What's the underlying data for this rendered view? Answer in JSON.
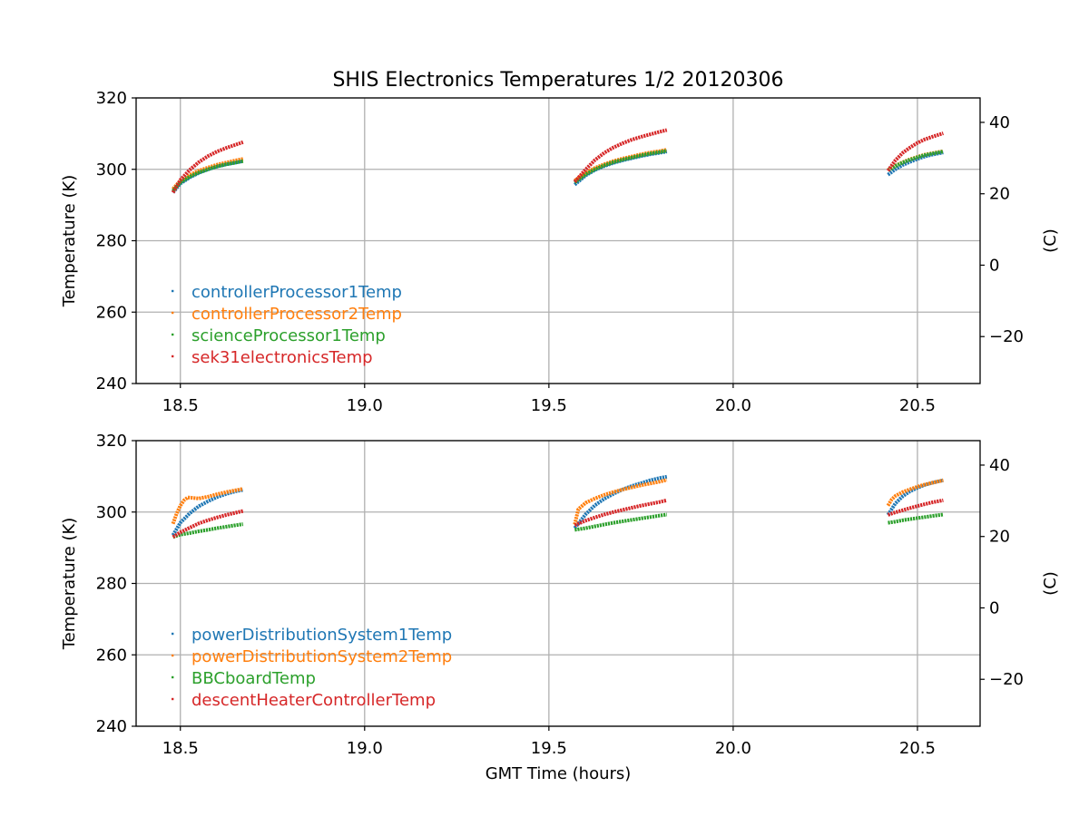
{
  "figure_title": "SHIS Electronics Temperatures 1/2 20120306",
  "chart_data": [
    {
      "type": "scatter",
      "title": "SHIS Electronics Temperatures 1/2 20120306",
      "xlabel": "",
      "ylabel": "Temperature (K)",
      "ylabel_right": "(C)",
      "xlim": [
        18.38,
        20.67
      ],
      "ylim": [
        240,
        320
      ],
      "xticks": [
        "18.5",
        "19.0",
        "19.5",
        "20.0",
        "20.5"
      ],
      "yticks": [
        "240",
        "260",
        "280",
        "300",
        "320"
      ],
      "right_yticks": [
        "−20",
        "0",
        "20",
        "40"
      ],
      "grid": true,
      "legend_position": "lower-left",
      "series": [
        {
          "name": "controllerProcessor1Temp",
          "color": "#1f77b4",
          "segments": [
            {
              "x": [
                18.48,
                18.5,
                18.525,
                18.55,
                18.575,
                18.6,
                18.625,
                18.65,
                18.67
              ],
              "y": [
                293.5,
                296.0,
                297.7,
                299.0,
                300.0,
                300.8,
                301.4,
                301.9,
                302.3
              ]
            },
            {
              "x": [
                19.57,
                19.6,
                19.625,
                19.65,
                19.675,
                19.7,
                19.725,
                19.75,
                19.775,
                19.8,
                19.82
              ],
              "y": [
                295.7,
                298.3,
                299.8,
                300.9,
                301.8,
                302.5,
                303.1,
                303.7,
                304.2,
                304.6,
                305.0
              ]
            },
            {
              "x": [
                20.42,
                20.44,
                20.46,
                20.48,
                20.5,
                20.52,
                20.54,
                20.57
              ],
              "y": [
                298.5,
                300.0,
                301.2,
                302.1,
                302.9,
                303.6,
                304.1,
                304.7
              ]
            }
          ]
        },
        {
          "name": "controllerProcessor2Temp",
          "color": "#ff7f0e",
          "segments": [
            {
              "x": [
                18.48,
                18.5,
                18.525,
                18.55,
                18.575,
                18.6,
                18.625,
                18.65,
                18.67
              ],
              "y": [
                294.5,
                296.8,
                298.4,
                299.6,
                300.5,
                301.3,
                301.9,
                302.5,
                302.9
              ]
            },
            {
              "x": [
                19.57,
                19.6,
                19.625,
                19.65,
                19.675,
                19.7,
                19.725,
                19.75,
                19.775,
                19.8,
                19.82
              ],
              "y": [
                296.8,
                299.0,
                300.4,
                301.4,
                302.3,
                303.0,
                303.6,
                304.2,
                304.7,
                305.1,
                305.5
              ]
            },
            {
              "x": [
                20.42,
                20.44,
                20.46,
                20.48,
                20.5,
                20.52,
                20.54,
                20.57
              ],
              "y": [
                299.8,
                301.0,
                302.0,
                302.8,
                303.5,
                304.1,
                304.5,
                305.1
              ]
            }
          ]
        },
        {
          "name": "scienceProcessor1Temp",
          "color": "#2ca02c",
          "segments": [
            {
              "x": [
                18.48,
                18.5,
                18.525,
                18.55,
                18.575,
                18.6,
                18.625,
                18.65,
                18.67
              ],
              "y": [
                294.0,
                296.3,
                297.9,
                299.1,
                300.0,
                300.8,
                301.4,
                301.9,
                302.3
              ]
            },
            {
              "x": [
                19.57,
                19.6,
                19.625,
                19.65,
                19.675,
                19.7,
                19.725,
                19.75,
                19.775,
                19.8,
                19.82
              ],
              "y": [
                296.3,
                298.6,
                300.0,
                301.1,
                302.0,
                302.7,
                303.3,
                303.9,
                304.4,
                304.8,
                305.2
              ]
            },
            {
              "x": [
                20.42,
                20.44,
                20.46,
                20.48,
                20.5,
                20.52,
                20.54,
                20.57
              ],
              "y": [
                299.7,
                300.9,
                301.9,
                302.7,
                303.4,
                304.0,
                304.4,
                305.0
              ]
            }
          ]
        },
        {
          "name": "sek31electronicsTemp",
          "color": "#d62728",
          "segments": [
            {
              "x": [
                18.48,
                18.5,
                18.525,
                18.55,
                18.575,
                18.6,
                18.625,
                18.65,
                18.67
              ],
              "y": [
                293.5,
                297.0,
                299.8,
                302.0,
                303.7,
                305.0,
                306.0,
                306.9,
                307.6
              ]
            },
            {
              "x": [
                19.57,
                19.6,
                19.625,
                19.65,
                19.675,
                19.7,
                19.725,
                19.75,
                19.775,
                19.8,
                19.82
              ],
              "y": [
                296.5,
                300.0,
                302.6,
                304.6,
                306.1,
                307.3,
                308.3,
                309.1,
                309.8,
                310.5,
                311.0
              ]
            },
            {
              "x": [
                20.42,
                20.44,
                20.46,
                20.48,
                20.5,
                20.52,
                20.54,
                20.57
              ],
              "y": [
                299.6,
                302.5,
                304.6,
                306.1,
                307.4,
                308.4,
                309.1,
                310.1
              ]
            }
          ]
        }
      ]
    },
    {
      "type": "scatter",
      "title": "",
      "xlabel": "GMT Time (hours)",
      "ylabel": "Temperature (K)",
      "ylabel_right": "(C)",
      "xlim": [
        18.38,
        20.67
      ],
      "ylim": [
        240,
        320
      ],
      "xticks": [
        "18.5",
        "19.0",
        "19.5",
        "20.0",
        "20.5"
      ],
      "yticks": [
        "240",
        "260",
        "280",
        "300",
        "320"
      ],
      "right_yticks": [
        "−20",
        "0",
        "20",
        "40"
      ],
      "grid": true,
      "legend_position": "lower-left",
      "series": [
        {
          "name": "powerDistributionSystem1Temp",
          "color": "#1f77b4",
          "segments": [
            {
              "x": [
                18.48,
                18.5,
                18.525,
                18.55,
                18.575,
                18.6,
                18.625,
                18.65,
                18.67
              ],
              "y": [
                293.5,
                297.0,
                299.6,
                301.6,
                303.0,
                304.2,
                305.1,
                305.8,
                306.2
              ]
            },
            {
              "x": [
                19.57,
                19.6,
                19.625,
                19.65,
                19.675,
                19.7,
                19.725,
                19.75,
                19.775,
                19.8,
                19.82
              ],
              "y": [
                295.5,
                299.4,
                301.9,
                303.7,
                305.1,
                306.3,
                307.3,
                308.1,
                308.9,
                309.5,
                309.9
              ]
            },
            {
              "x": [
                20.42,
                20.44,
                20.46,
                20.48,
                20.5,
                20.52,
                20.54,
                20.57
              ],
              "y": [
                299.2,
                302.4,
                304.4,
                305.8,
                306.8,
                307.6,
                308.2,
                308.9
              ]
            }
          ]
        },
        {
          "name": "powerDistributionSystem2Temp",
          "color": "#ff7f0e",
          "segments": [
            {
              "x": [
                18.48,
                18.49,
                18.5,
                18.51,
                18.52,
                18.53,
                18.55,
                18.575,
                18.6,
                18.625,
                18.65,
                18.67
              ],
              "y": [
                296.7,
                299.6,
                301.8,
                303.3,
                304.1,
                304.0,
                303.8,
                304.3,
                305.0,
                305.6,
                306.1,
                306.5
              ]
            },
            {
              "x": [
                19.57,
                19.58,
                19.6,
                19.625,
                19.65,
                19.675,
                19.7,
                19.725,
                19.75,
                19.775,
                19.8,
                19.82
              ],
              "y": [
                296.5,
                300.8,
                302.6,
                303.8,
                304.8,
                305.6,
                306.3,
                306.9,
                307.5,
                308.0,
                308.5,
                309.0
              ]
            },
            {
              "x": [
                20.42,
                20.43,
                20.44,
                20.46,
                20.48,
                20.5,
                20.52,
                20.54,
                20.57
              ],
              "y": [
                301.8,
                303.5,
                304.5,
                305.6,
                306.4,
                307.1,
                307.7,
                308.2,
                308.9
              ]
            }
          ]
        },
        {
          "name": "BBCboardTemp",
          "color": "#2ca02c",
          "segments": [
            {
              "x": [
                18.48,
                18.5,
                18.525,
                18.55,
                18.575,
                18.6,
                18.625,
                18.65,
                18.67
              ],
              "y": [
                293.0,
                293.7,
                294.1,
                294.6,
                295.0,
                295.5,
                295.9,
                296.3,
                296.6
              ]
            },
            {
              "x": [
                19.57,
                19.6,
                19.625,
                19.65,
                19.675,
                19.7,
                19.725,
                19.75,
                19.775,
                19.8,
                19.82
              ],
              "y": [
                295.0,
                295.5,
                296.0,
                296.5,
                297.0,
                297.4,
                297.8,
                298.2,
                298.6,
                299.0,
                299.3
              ]
            },
            {
              "x": [
                20.42,
                20.44,
                20.46,
                20.48,
                20.5,
                20.52,
                20.54,
                20.57
              ],
              "y": [
                297.0,
                297.3,
                297.7,
                298.0,
                298.3,
                298.6,
                298.9,
                299.3
              ]
            }
          ]
        },
        {
          "name": "descentHeaterControllerTemp",
          "color": "#d62728",
          "segments": [
            {
              "x": [
                18.48,
                18.5,
                18.525,
                18.55,
                18.575,
                18.6,
                18.625,
                18.65,
                18.67
              ],
              "y": [
                293.0,
                294.3,
                295.6,
                296.8,
                297.7,
                298.5,
                299.2,
                299.8,
                300.3
              ]
            },
            {
              "x": [
                19.57,
                19.6,
                19.625,
                19.65,
                19.675,
                19.7,
                19.725,
                19.75,
                19.775,
                19.8,
                19.82
              ],
              "y": [
                296.3,
                297.6,
                298.5,
                299.3,
                300.0,
                300.6,
                301.2,
                301.8,
                302.3,
                302.8,
                303.3
              ]
            },
            {
              "x": [
                20.42,
                20.44,
                20.46,
                20.48,
                20.5,
                20.52,
                20.54,
                20.57
              ],
              "y": [
                299.2,
                299.9,
                300.5,
                301.1,
                301.7,
                302.2,
                302.7,
                303.3
              ]
            }
          ]
        }
      ]
    }
  ]
}
